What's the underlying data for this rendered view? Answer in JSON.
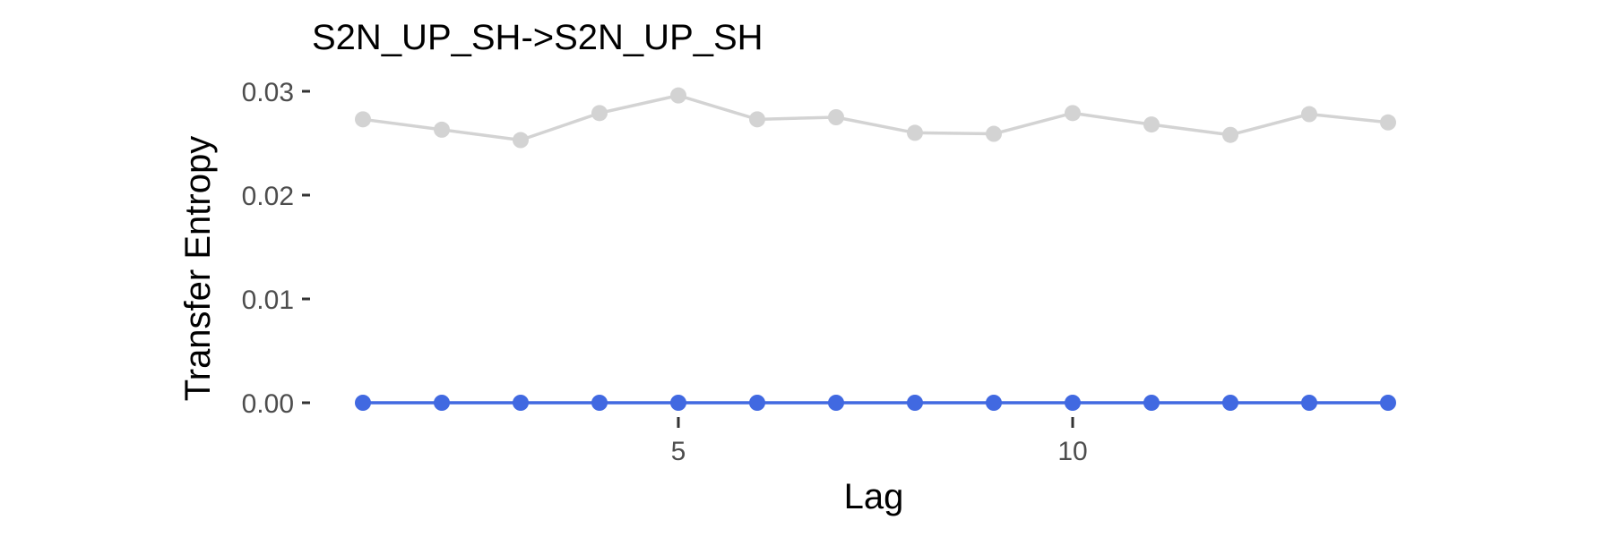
{
  "chart_data": {
    "type": "line",
    "title": "S2N_UP_SH->S2N_UP_SH",
    "xlabel": "Lag",
    "ylabel": "Transfer Entropy",
    "x": [
      1,
      2,
      3,
      4,
      5,
      6,
      7,
      8,
      9,
      10,
      11,
      12,
      13,
      14
    ],
    "xlim": [
      1,
      14
    ],
    "ylim": [
      0,
      0.03
    ],
    "xticks": [
      5,
      10
    ],
    "xtick_labels": [
      "5",
      "10"
    ],
    "yticks": [
      0,
      0.01,
      0.02,
      0.03
    ],
    "ytick_labels": [
      "0.00",
      "0.01",
      "0.02",
      "0.03"
    ],
    "grid": false,
    "legend": "none",
    "series": [
      {
        "color": "#d3d3d3",
        "values": [
          0.0273,
          0.0263,
          0.0253,
          0.0279,
          0.0296,
          0.0273,
          0.0275,
          0.026,
          0.0259,
          0.0279,
          0.0268,
          0.0258,
          0.0278,
          0.027
        ]
      },
      {
        "color": "#4169e1",
        "values": [
          0,
          0,
          0,
          0,
          0,
          0,
          0,
          0,
          0,
          0,
          0,
          0,
          0,
          0
        ]
      }
    ]
  }
}
